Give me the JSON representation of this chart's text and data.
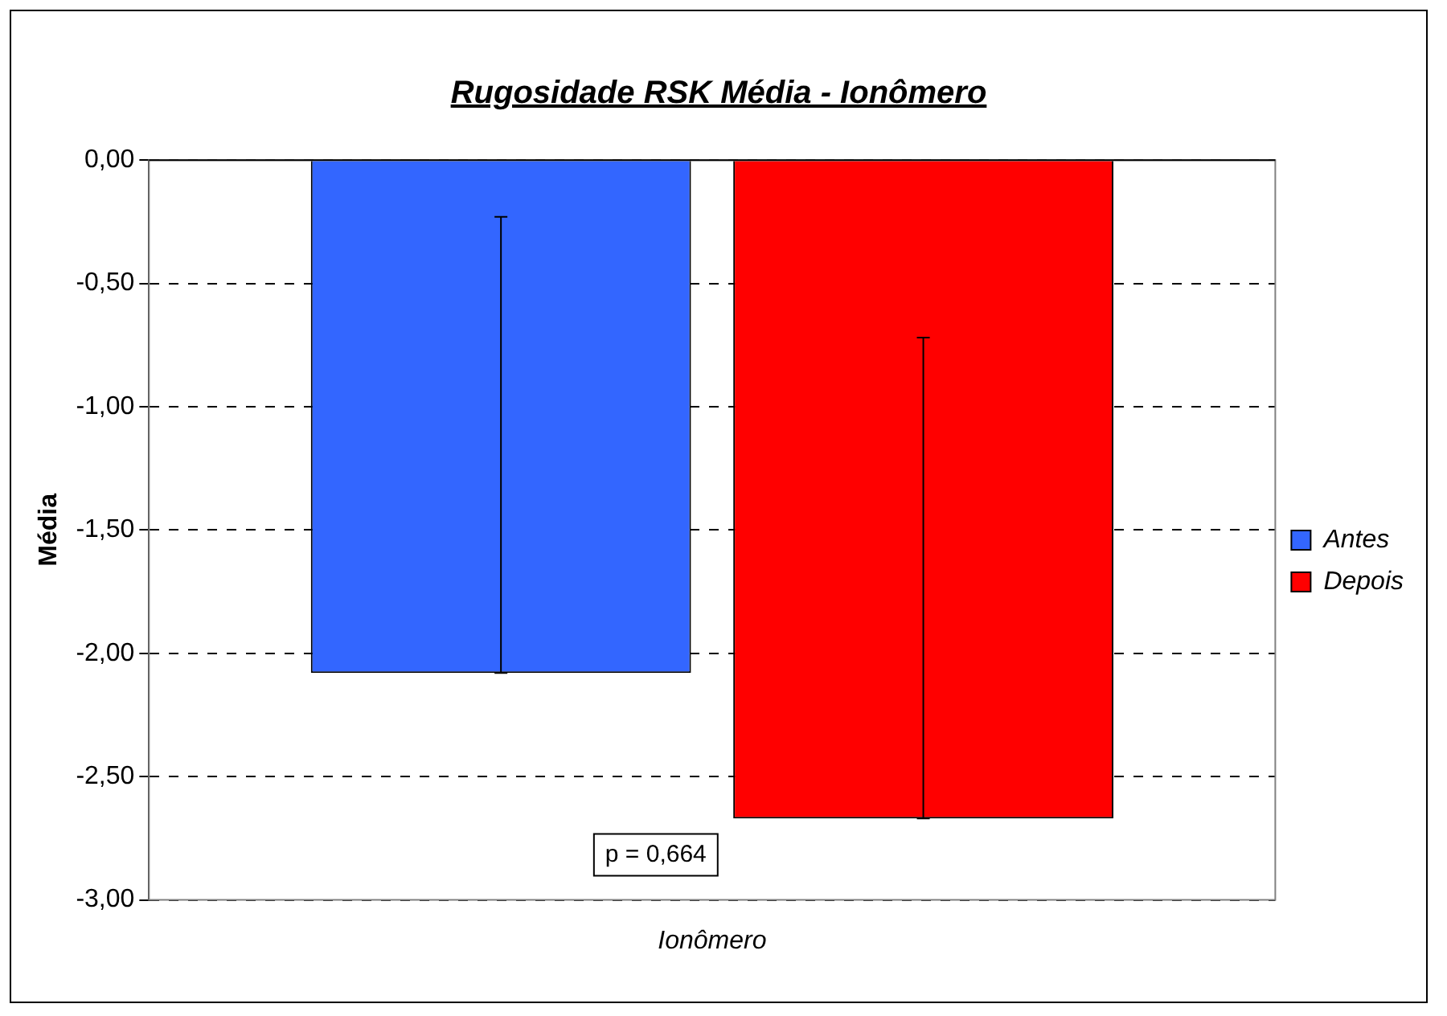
{
  "chart_data": {
    "type": "bar",
    "title": "Rugosidade RSK Média - Ionômero",
    "ylabel": "Média",
    "categories": [
      "Ionômero"
    ],
    "series": [
      {
        "name": "Antes",
        "color": "#3366ff",
        "values": [
          -2.08
        ],
        "errors": [
          [
            -2.08,
            -0.23
          ]
        ]
      },
      {
        "name": "Depois",
        "color": "#ff0000",
        "values": [
          -2.67
        ],
        "errors": [
          [
            -2.67,
            -0.72
          ]
        ]
      }
    ],
    "ylim": [
      -3,
      0
    ],
    "yticks": [
      {
        "value": 0,
        "label": "0,00"
      },
      {
        "value": -0.5,
        "label": "-0,50"
      },
      {
        "value": -1,
        "label": "-1,00"
      },
      {
        "value": -1.5,
        "label": "-1,50"
      },
      {
        "value": -2,
        "label": "-2,00"
      },
      {
        "value": -2.5,
        "label": "-2,50"
      },
      {
        "value": -3,
        "label": "-3,00"
      }
    ],
    "grid": "y",
    "legend": "right",
    "annotations": [
      "p = 0,664"
    ]
  }
}
